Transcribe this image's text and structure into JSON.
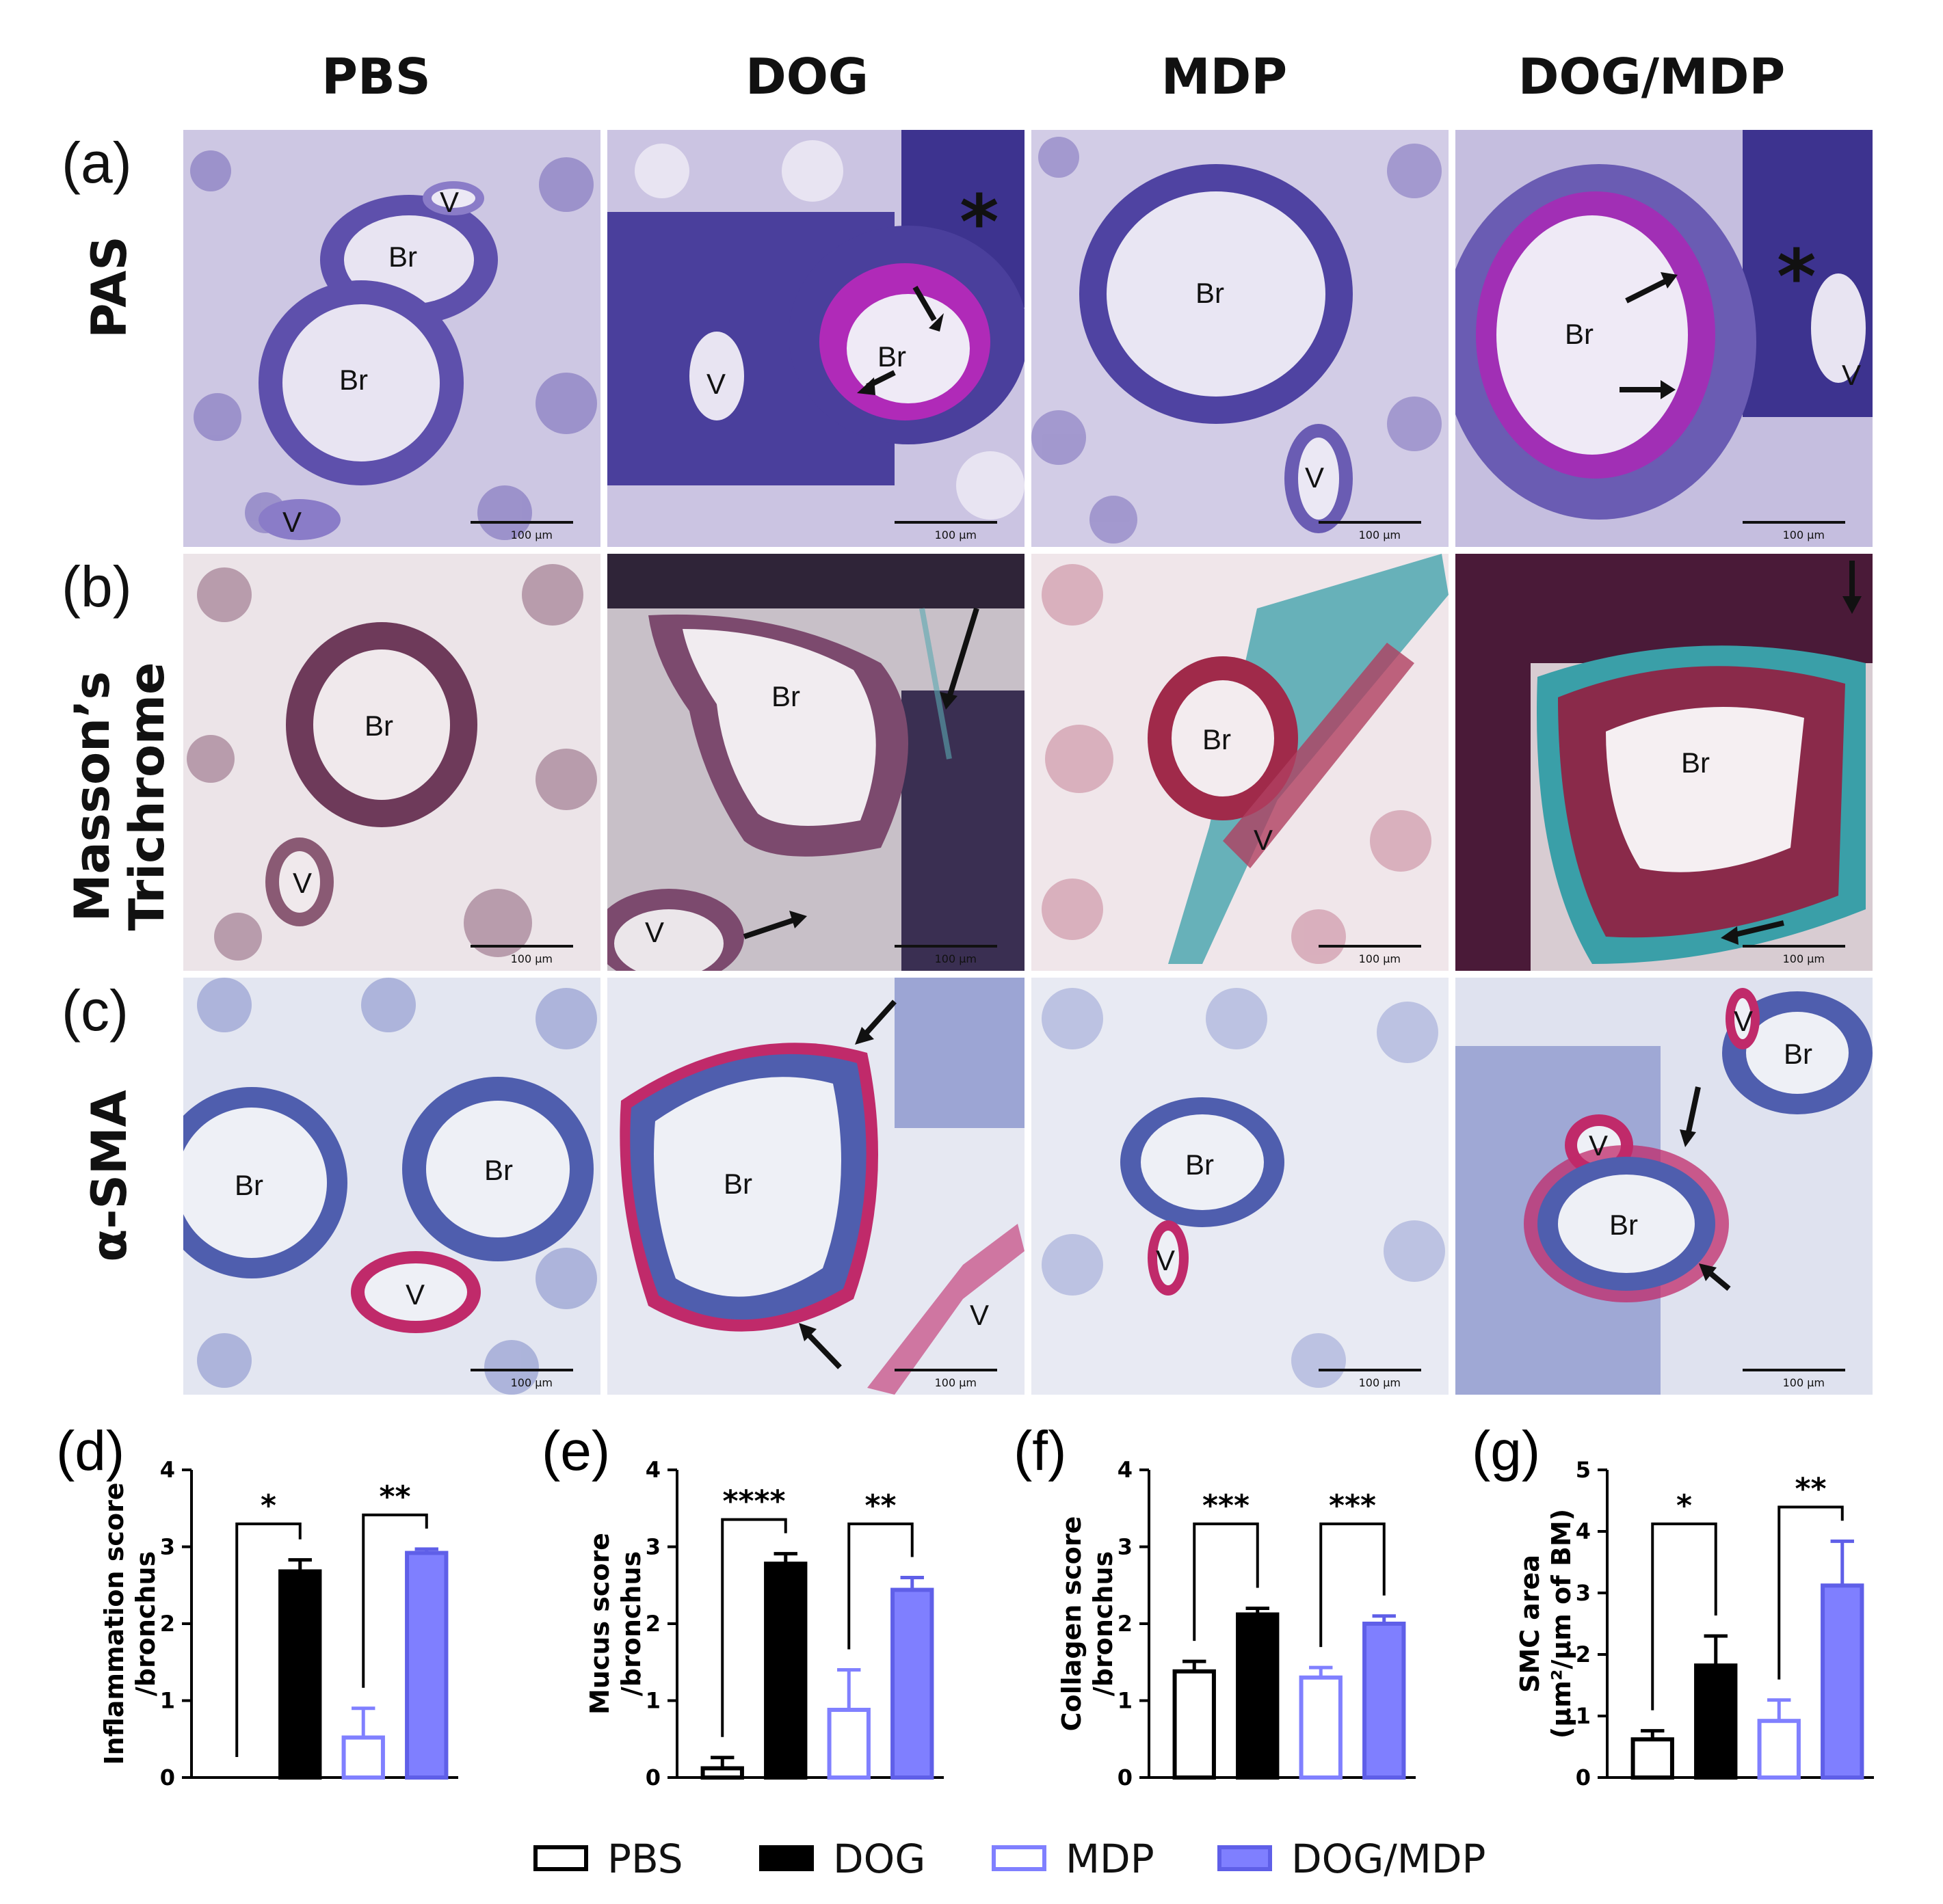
{
  "columns": [
    "PBS",
    "DOG",
    "MDP",
    "DOG/MDP"
  ],
  "rows": [
    {
      "letter": "(a)",
      "stain": "PAS"
    },
    {
      "letter": "(b)",
      "stain_line1": "Masson’s",
      "stain_line2": "Trichrome"
    },
    {
      "letter": "(c)",
      "stain": "α-SMA"
    }
  ],
  "micro_labels": {
    "bronchus": "Br",
    "vessel": "V",
    "asterisk": "*",
    "scale": "100 µm"
  },
  "colors": {
    "pas_bg": "#c9c3e0",
    "pas_tissue": "#6a5bb0",
    "pas_dense": "#3e3590",
    "pas_mucus": "#b02ab8",
    "mt_bg": "#e9dfe3",
    "mt_tissue": "#8a4a6a",
    "mt_dense": "#4a1a38",
    "mt_collagen": "#3a9fa8",
    "sma_bg": "#e6e8f2",
    "sma_tissue": "#5a6ab8",
    "sma_red": "#c02a6a",
    "pbs": "#000000",
    "dog": "#000000",
    "mdp": "#8080ff",
    "dogmdp": "#7f7fff"
  },
  "chart_data": [
    {
      "type": "bar",
      "panel": "(d)",
      "ylabel_line1": "Inflammation score",
      "ylabel_line2": "/bronchus",
      "categories": [
        "PBS",
        "DOG",
        "MDP",
        "DOG/MDP"
      ],
      "values": [
        0,
        2.68,
        0.52,
        2.92
      ],
      "errors": [
        0,
        0.15,
        0.38,
        0.05
      ],
      "ylim": [
        0,
        4
      ],
      "yticks": [
        "0",
        "1",
        "2",
        "3",
        "4"
      ],
      "brackets": [
        {
          "from": 0,
          "to": 1,
          "label": "*"
        },
        {
          "from": 2,
          "to": 3,
          "label": "**"
        }
      ]
    },
    {
      "type": "bar",
      "panel": "(e)",
      "ylabel_line1": "Mucus score",
      "ylabel_line2": "/bronchus",
      "categories": [
        "PBS",
        "DOG",
        "MDP",
        "DOG/MDP"
      ],
      "values": [
        0.12,
        2.78,
        0.88,
        2.44
      ],
      "errors": [
        0.14,
        0.13,
        0.52,
        0.16
      ],
      "ylim": [
        0,
        4
      ],
      "yticks": [
        "0",
        "1",
        "2",
        "3",
        "4"
      ],
      "brackets": [
        {
          "from": 0,
          "to": 1,
          "label": "****"
        },
        {
          "from": 2,
          "to": 3,
          "label": "**"
        }
      ]
    },
    {
      "type": "bar",
      "panel": "(f)",
      "ylabel_line1": "Collagen score",
      "ylabel_line2": "/bronchus",
      "categories": [
        "PBS",
        "DOG",
        "MDP",
        "DOG/MDP"
      ],
      "values": [
        1.38,
        2.12,
        1.3,
        2.0
      ],
      "errors": [
        0.13,
        0.08,
        0.13,
        0.1
      ],
      "ylim": [
        0,
        4
      ],
      "yticks": [
        "0",
        "1",
        "2",
        "3",
        "4"
      ],
      "brackets": [
        {
          "from": 0,
          "to": 1,
          "label": "***"
        },
        {
          "from": 2,
          "to": 3,
          "label": "***"
        }
      ]
    },
    {
      "type": "bar",
      "panel": "(g)",
      "ylabel_line1": "SMC area",
      "ylabel_line2": "(µm²/µm of BM)",
      "categories": [
        "PBS",
        "DOG",
        "MDP",
        "DOG/MDP"
      ],
      "values": [
        0.62,
        1.82,
        0.92,
        3.12
      ],
      "errors": [
        0.14,
        0.48,
        0.34,
        0.72
      ],
      "ylim": [
        0,
        5
      ],
      "yticks": [
        "0",
        "1",
        "2",
        "3",
        "4",
        "5"
      ],
      "brackets": [
        {
          "from": 0,
          "to": 1,
          "label": "*"
        },
        {
          "from": 2,
          "to": 3,
          "label": "**"
        }
      ]
    }
  ],
  "legend": [
    {
      "label": "PBS",
      "style": "open-black"
    },
    {
      "label": "DOG",
      "style": "filled-black"
    },
    {
      "label": "MDP",
      "style": "open-blue"
    },
    {
      "label": "DOG/MDP",
      "style": "filled-blue"
    }
  ]
}
